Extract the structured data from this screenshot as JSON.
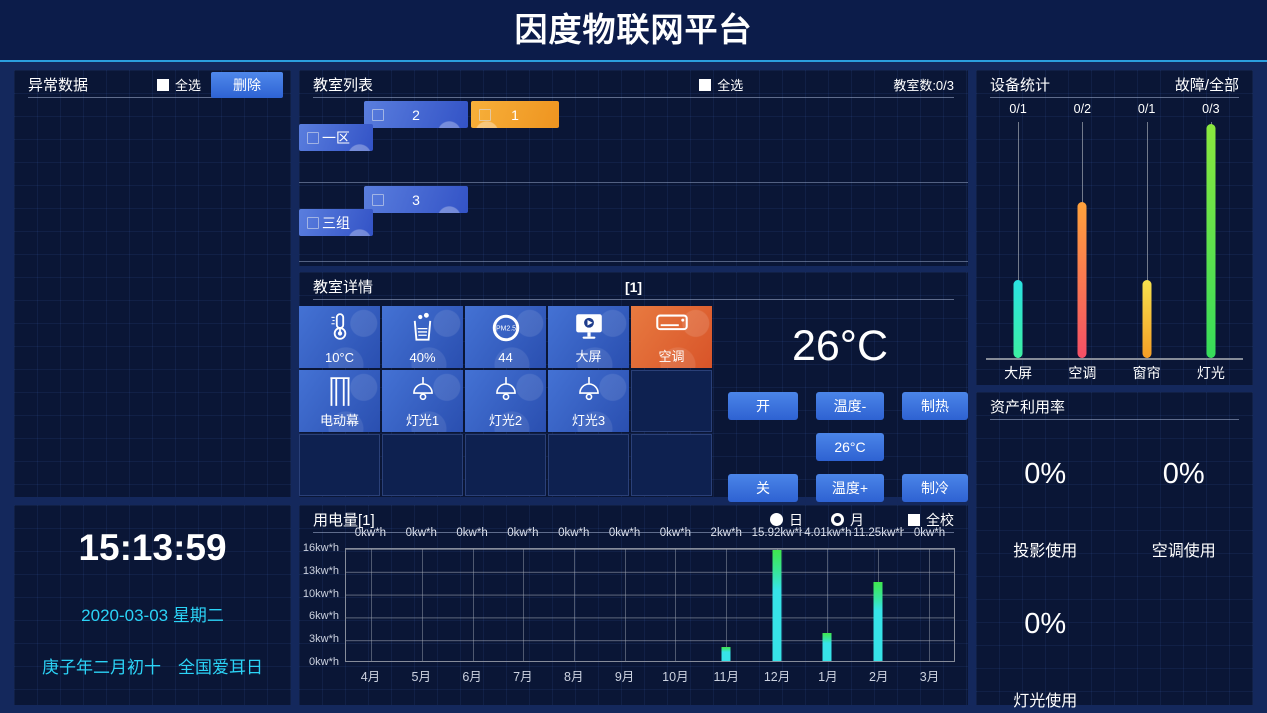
{
  "header": {
    "title": "因度物联网平台"
  },
  "abnormal": {
    "title": "异常数据",
    "select_all": "全选",
    "delete": "删除"
  },
  "clock": {
    "time": "15:13:59",
    "date": "2020-03-03 星期二",
    "lunar": "庚子年二月初十　全国爱耳日"
  },
  "room_list": {
    "title": "教室列表",
    "select_all": "全选",
    "count": "教室数:0/3",
    "groups": [
      {
        "name": "一区",
        "rooms": [
          {
            "label": "2",
            "color": "blue"
          },
          {
            "label": "1",
            "color": "orange"
          }
        ]
      },
      {
        "name": "三组",
        "rooms": [
          {
            "label": "3",
            "color": "blue"
          }
        ]
      }
    ]
  },
  "room_detail": {
    "title": "教室详情",
    "room_tag": "[1]",
    "tiles": [
      {
        "icon": "thermometer-icon",
        "label": "10°C",
        "style": "blue",
        "interactable": false
      },
      {
        "icon": "humidity-icon",
        "label": "40%",
        "style": "blue",
        "interactable": false
      },
      {
        "icon": "pm25-icon",
        "label": "44",
        "style": "blue",
        "interactable": false
      },
      {
        "icon": "screen-icon",
        "label": "大屏",
        "style": "blue",
        "interactable": true
      },
      {
        "icon": "ac-icon",
        "label": "空调",
        "style": "orange",
        "interactable": true
      },
      {
        "icon": "curtain-icon",
        "label": "电动幕",
        "style": "blue",
        "interactable": true
      },
      {
        "icon": "lamp-icon",
        "label": "灯光1",
        "style": "blue",
        "interactable": true
      },
      {
        "icon": "lamp-icon",
        "label": "灯光2",
        "style": "blue",
        "interactable": true
      },
      {
        "icon": "lamp-icon",
        "label": "灯光3",
        "style": "blue",
        "interactable": true
      }
    ],
    "ac": {
      "temperature": "26°C",
      "on": "开",
      "off": "关",
      "temp_minus": "温度-",
      "temp_plus": "温度+",
      "heat": "制热",
      "cool": "制冷",
      "setpoint": "26°C"
    }
  },
  "power": {
    "title": "用电量[1]",
    "mode_day": "日",
    "mode_month": "月",
    "selected_mode": "月",
    "school": "全校"
  },
  "devices": {
    "title": "设备统计",
    "legend": "故障/全部"
  },
  "assets": {
    "title": "资产利用率",
    "items": [
      {
        "value": "0%",
        "label": "投影使用"
      },
      {
        "value": "0%",
        "label": "空调使用"
      },
      {
        "value": "0%",
        "label": "灯光使用"
      }
    ]
  },
  "chart_data": [
    {
      "id": "power_usage",
      "type": "bar",
      "title": "用电量[1]",
      "x": [
        "4月",
        "5月",
        "6月",
        "7月",
        "8月",
        "9月",
        "10月",
        "11月",
        "12月",
        "1月",
        "2月",
        "3月"
      ],
      "values": [
        0,
        0,
        0,
        0,
        0,
        0,
        0,
        2,
        15.92,
        4.01,
        11.25,
        0
      ],
      "value_labels": [
        "0kw*h",
        "0kw*h",
        "0kw*h",
        "0kw*h",
        "0kw*h",
        "0kw*h",
        "0kw*h",
        "2kw*h",
        "15.92kw*h",
        "4.01kw*h",
        "11.25kw*h",
        "0kw*h"
      ],
      "y_ticks_top_down": [
        "16kw*h",
        "13kw*h",
        "10kw*h",
        "6kw*h",
        "3kw*h",
        "0kw*h"
      ],
      "ylim": [
        0,
        16
      ],
      "grid": true,
      "legend": "none",
      "bar_color_top": "#3fe74d",
      "bar_color_bottom": "#37e3e8"
    },
    {
      "id": "device_stats",
      "type": "bar",
      "title": "设备统计",
      "categories": [
        "大屏",
        "空调",
        "窗帘",
        "灯光"
      ],
      "fault_total_labels": [
        "0/1",
        "0/2",
        "0/1",
        "0/3"
      ],
      "totals": [
        1,
        2,
        1,
        3
      ],
      "faults": [
        0,
        0,
        0,
        0
      ],
      "ylim": [
        0,
        3
      ],
      "colors": [
        {
          "top": "#2ae2e2",
          "bottom": "#3df0a2"
        },
        {
          "top": "#ffa23c",
          "bottom": "#f44f66"
        },
        {
          "top": "#f6e14e",
          "bottom": "#f59e26"
        },
        {
          "top": "#8ae83e",
          "bottom": "#36dc5a"
        }
      ]
    }
  ]
}
